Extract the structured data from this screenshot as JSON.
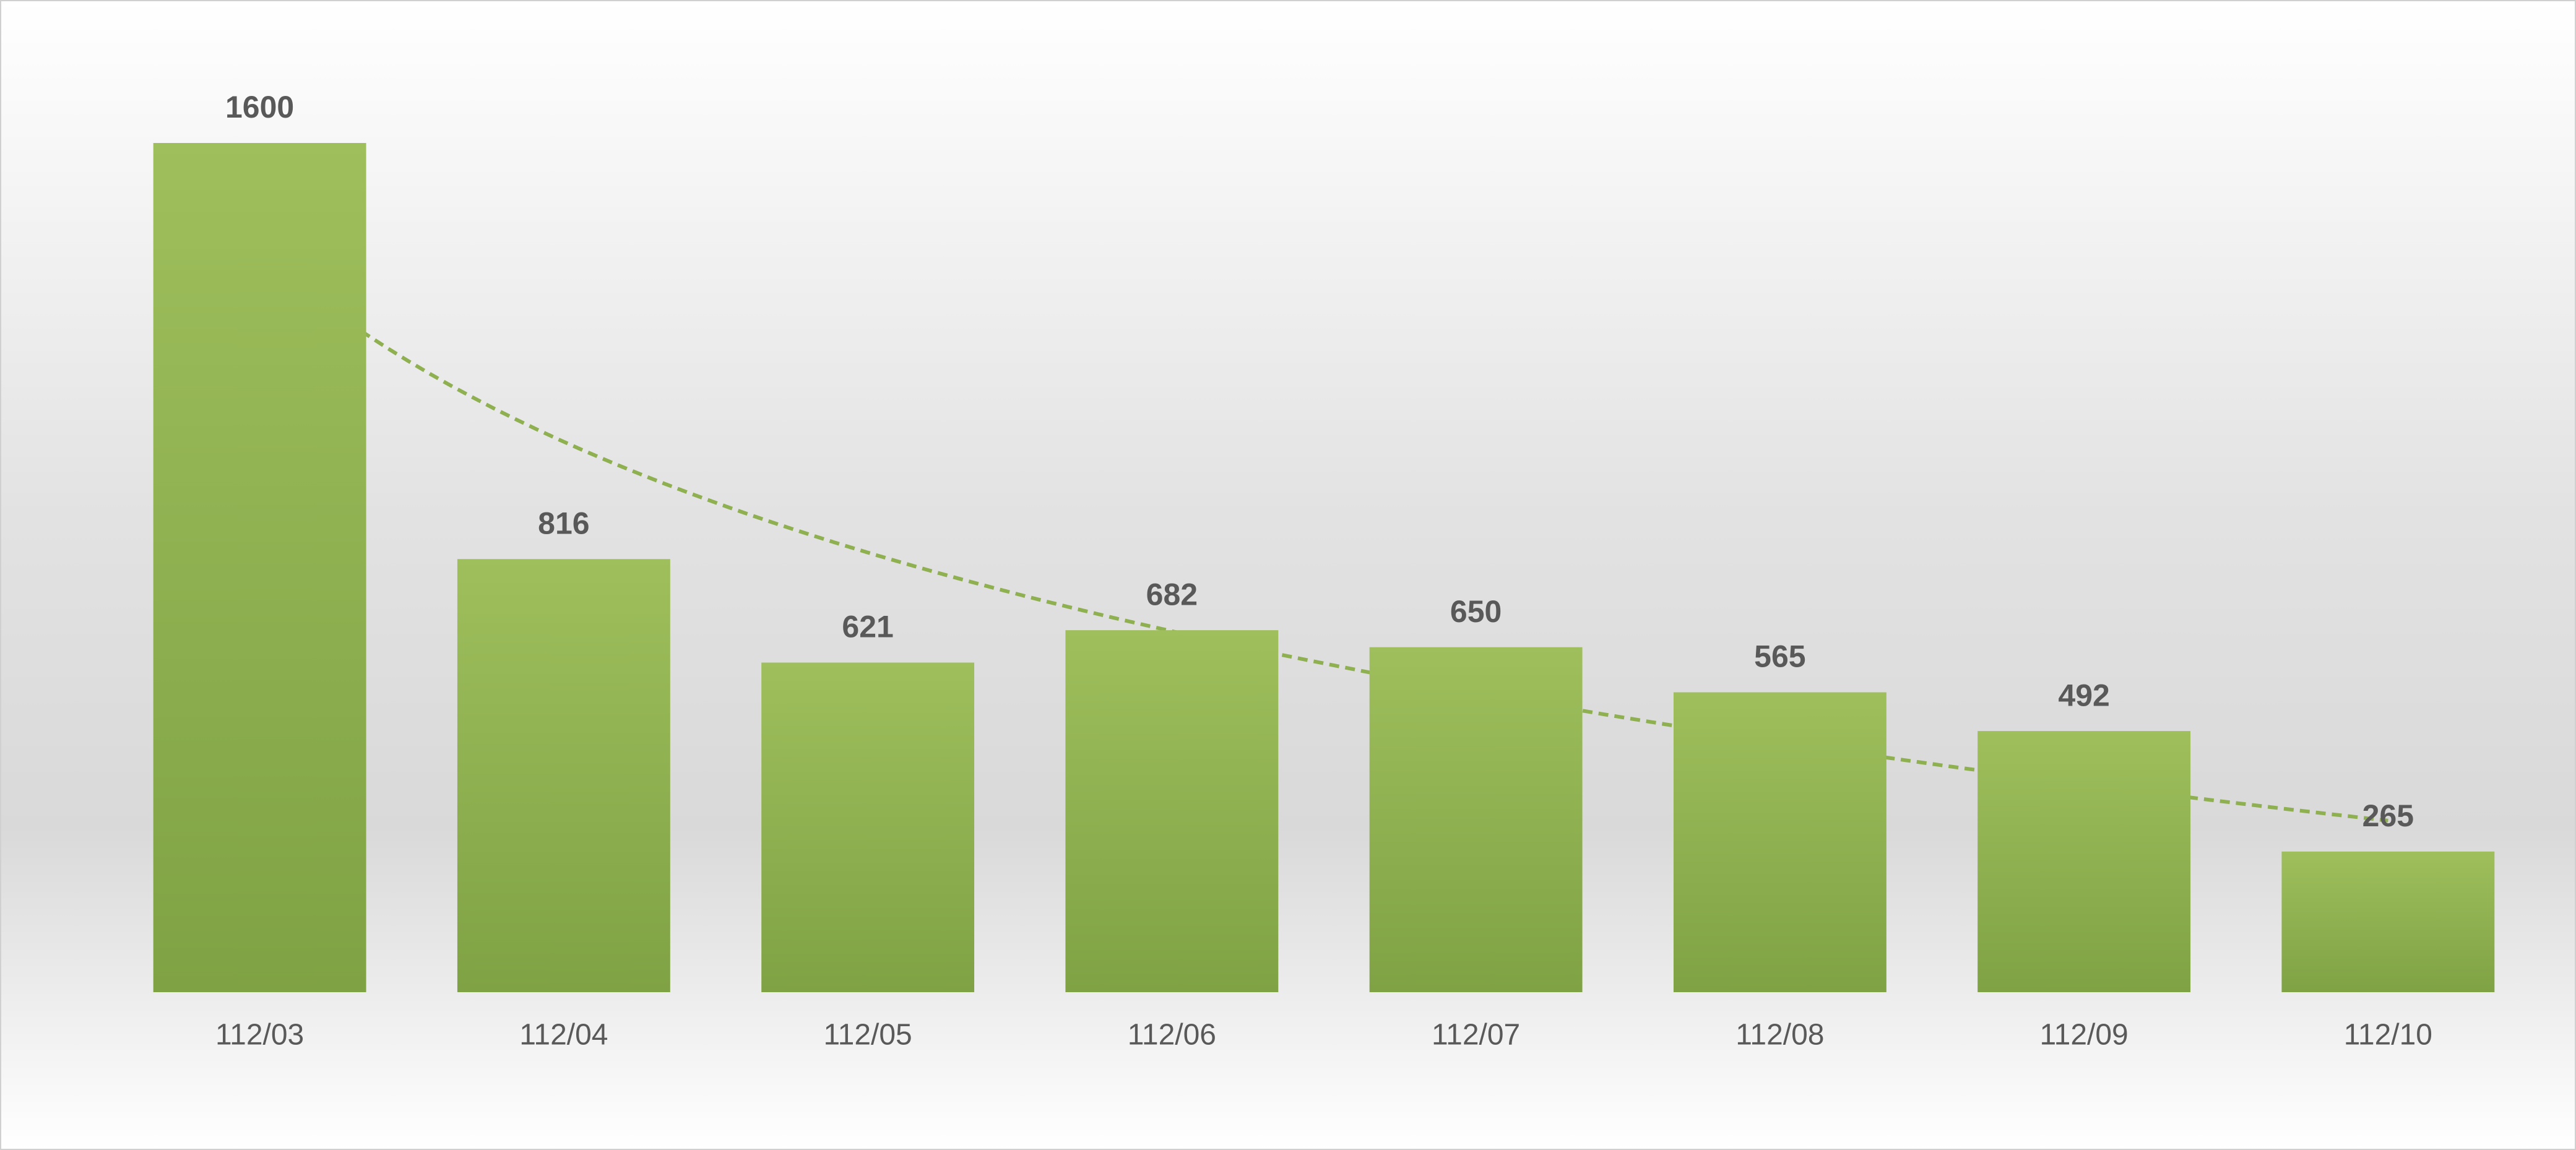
{
  "chart_data": {
    "type": "bar",
    "categories": [
      "112/03",
      "112/04",
      "112/05",
      "112/06",
      "112/07",
      "112/08",
      "112/09",
      "112/10"
    ],
    "values": [
      1600,
      816,
      621,
      682,
      650,
      565,
      492,
      265
    ],
    "color": "#8fb050",
    "ylim": [
      0,
      1600
    ],
    "trendline": true
  }
}
